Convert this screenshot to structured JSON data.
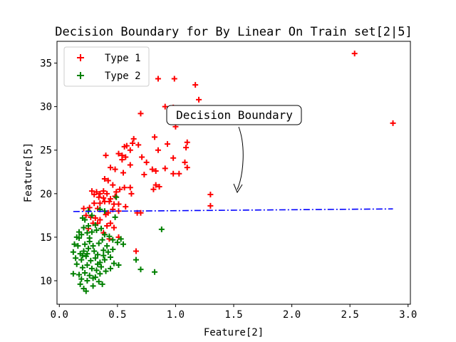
{
  "chart_data": {
    "type": "scatter",
    "title": "Decision Boundary for By Linear On Train set[2|5]",
    "xlabel": "Feature[2]",
    "ylabel": "Feature[5]",
    "xlim": [
      -0.02,
      3.02
    ],
    "ylim": [
      7.3,
      37.5
    ],
    "xticks": [
      0.0,
      0.5,
      1.0,
      1.5,
      2.0,
      2.5,
      3.0
    ],
    "xtick_labels": [
      "0.0",
      "0.5",
      "1.0",
      "1.5",
      "2.0",
      "2.5",
      "3.0"
    ],
    "yticks": [
      10,
      15,
      20,
      25,
      30,
      35
    ],
    "ytick_labels": [
      "10",
      "15",
      "20",
      "25",
      "30",
      "35"
    ],
    "grid": false,
    "legend_position": "top-left",
    "series": [
      {
        "name": "Type 1",
        "color": "#ff0000",
        "marker": "plus",
        "points": [
          [
            2.54,
            36.1
          ],
          [
            2.87,
            28.1
          ],
          [
            0.85,
            33.2
          ],
          [
            0.99,
            33.2
          ],
          [
            1.17,
            32.5
          ],
          [
            1.2,
            30.8
          ],
          [
            0.91,
            30.0
          ],
          [
            0.98,
            29.9
          ],
          [
            0.7,
            29.2
          ],
          [
            1.0,
            27.7
          ],
          [
            0.82,
            26.5
          ],
          [
            0.64,
            26.3
          ],
          [
            0.63,
            25.8
          ],
          [
            0.58,
            25.5
          ],
          [
            0.56,
            25.4
          ],
          [
            0.68,
            25.6
          ],
          [
            0.93,
            25.7
          ],
          [
            1.1,
            25.9
          ],
          [
            1.09,
            25.3
          ],
          [
            0.61,
            25.0
          ],
          [
            0.51,
            24.6
          ],
          [
            0.54,
            24.4
          ],
          [
            0.57,
            24.2
          ],
          [
            0.71,
            24.2
          ],
          [
            0.85,
            25.0
          ],
          [
            0.4,
            24.4
          ],
          [
            0.54,
            23.9
          ],
          [
            0.98,
            24.1
          ],
          [
            0.75,
            23.6
          ],
          [
            1.08,
            23.6
          ],
          [
            0.61,
            23.3
          ],
          [
            0.8,
            22.8
          ],
          [
            0.91,
            22.9
          ],
          [
            1.1,
            23.0
          ],
          [
            0.44,
            23.0
          ],
          [
            0.48,
            22.8
          ],
          [
            0.55,
            22.4
          ],
          [
            0.73,
            22.2
          ],
          [
            0.83,
            22.6
          ],
          [
            0.98,
            22.3
          ],
          [
            1.03,
            22.3
          ],
          [
            0.39,
            21.7
          ],
          [
            0.42,
            21.5
          ],
          [
            0.46,
            21.0
          ],
          [
            0.56,
            20.7
          ],
          [
            0.61,
            20.7
          ],
          [
            0.83,
            21.0
          ],
          [
            0.81,
            20.5
          ],
          [
            0.86,
            20.8
          ],
          [
            0.32,
            20.2
          ],
          [
            0.35,
            20.0
          ],
          [
            0.38,
            20.3
          ],
          [
            0.41,
            20.0
          ],
          [
            0.49,
            20.2
          ],
          [
            0.52,
            20.5
          ],
          [
            0.62,
            20.0
          ],
          [
            0.28,
            20.3
          ],
          [
            0.3,
            19.9
          ],
          [
            0.34,
            19.6
          ],
          [
            0.38,
            19.5
          ],
          [
            0.44,
            19.4
          ],
          [
            0.48,
            19.7
          ],
          [
            1.3,
            19.9
          ],
          [
            0.3,
            18.9
          ],
          [
            0.35,
            18.9
          ],
          [
            0.39,
            19.1
          ],
          [
            0.43,
            19.1
          ],
          [
            0.47,
            18.8
          ],
          [
            0.51,
            18.8
          ],
          [
            0.57,
            18.5
          ],
          [
            0.26,
            18.4
          ],
          [
            0.33,
            18.3
          ],
          [
            0.46,
            18.2
          ],
          [
            0.51,
            18.0
          ],
          [
            0.42,
            17.8
          ],
          [
            0.67,
            17.8
          ],
          [
            0.7,
            17.8
          ],
          [
            1.3,
            18.6
          ],
          [
            0.21,
            18.3
          ],
          [
            0.23,
            17.5
          ],
          [
            0.27,
            17.3
          ],
          [
            0.31,
            17.2
          ],
          [
            0.35,
            17.0
          ],
          [
            0.4,
            17.6
          ],
          [
            0.44,
            16.6
          ],
          [
            0.47,
            16.1
          ],
          [
            0.29,
            16.6
          ],
          [
            0.33,
            16.6
          ],
          [
            0.41,
            16.3
          ],
          [
            0.51,
            15.0
          ],
          [
            0.43,
            14.8
          ],
          [
            0.66,
            13.4
          ],
          [
            0.25,
            16.0
          ],
          [
            0.38,
            15.5
          ]
        ]
      },
      {
        "name": "Type 2",
        "color": "#008000",
        "marker": "plus",
        "points": [
          [
            0.88,
            15.9
          ],
          [
            0.7,
            11.3
          ],
          [
            0.82,
            11.0
          ],
          [
            0.66,
            12.4
          ],
          [
            0.53,
            14.8
          ],
          [
            0.49,
            19.6
          ],
          [
            0.25,
            18.0
          ],
          [
            0.39,
            18.0
          ],
          [
            0.48,
            17.3
          ],
          [
            0.2,
            17.2
          ],
          [
            0.15,
            15.0
          ],
          [
            0.17,
            14.9
          ],
          [
            0.19,
            15.3
          ],
          [
            0.24,
            15.5
          ],
          [
            0.28,
            15.6
          ],
          [
            0.32,
            15.8
          ],
          [
            0.21,
            16.1
          ],
          [
            0.25,
            16.3
          ],
          [
            0.31,
            16.4
          ],
          [
            0.36,
            16.0
          ],
          [
            0.39,
            15.3
          ],
          [
            0.43,
            15.1
          ],
          [
            0.46,
            14.7
          ],
          [
            0.5,
            14.4
          ],
          [
            0.55,
            14.2
          ],
          [
            0.13,
            14.2
          ],
          [
            0.16,
            14.0
          ],
          [
            0.22,
            14.2
          ],
          [
            0.26,
            14.5
          ],
          [
            0.29,
            14.0
          ],
          [
            0.34,
            14.3
          ],
          [
            0.37,
            14.7
          ],
          [
            0.41,
            14.0
          ],
          [
            0.12,
            13.3
          ],
          [
            0.18,
            13.1
          ],
          [
            0.21,
            13.4
          ],
          [
            0.25,
            13.7
          ],
          [
            0.3,
            13.4
          ],
          [
            0.33,
            13.0
          ],
          [
            0.38,
            13.5
          ],
          [
            0.42,
            13.3
          ],
          [
            0.46,
            13.6
          ],
          [
            0.14,
            12.6
          ],
          [
            0.19,
            12.4
          ],
          [
            0.23,
            12.8
          ],
          [
            0.27,
            12.3
          ],
          [
            0.31,
            12.6
          ],
          [
            0.35,
            12.1
          ],
          [
            0.39,
            12.4
          ],
          [
            0.44,
            12.7
          ],
          [
            0.47,
            12.0
          ],
          [
            0.51,
            11.8
          ],
          [
            0.15,
            11.9
          ],
          [
            0.2,
            11.5
          ],
          [
            0.24,
            11.8
          ],
          [
            0.28,
            11.4
          ],
          [
            0.32,
            11.2
          ],
          [
            0.36,
            11.6
          ],
          [
            0.4,
            11.1
          ],
          [
            0.44,
            11.4
          ],
          [
            0.12,
            10.8
          ],
          [
            0.17,
            10.7
          ],
          [
            0.22,
            10.9
          ],
          [
            0.26,
            10.6
          ],
          [
            0.31,
            10.4
          ],
          [
            0.35,
            10.8
          ],
          [
            0.19,
            10.2
          ],
          [
            0.24,
            10.0
          ],
          [
            0.29,
            10.3
          ],
          [
            0.34,
            9.9
          ],
          [
            0.18,
            9.6
          ],
          [
            0.21,
            9.1
          ],
          [
            0.23,
            8.8
          ],
          [
            0.37,
            9.6
          ],
          [
            0.35,
            18.2
          ],
          [
            0.22,
            17.0
          ],
          [
            0.26,
            14.9
          ],
          [
            0.17,
            15.6
          ],
          [
            0.2,
            12.9
          ],
          [
            0.38,
            12.9
          ],
          [
            0.28,
            17.5
          ],
          [
            0.24,
            13.1
          ],
          [
            0.33,
            11.9
          ],
          [
            0.29,
            9.4
          ]
        ]
      }
    ],
    "boundary": {
      "style": "dash-dot",
      "color": "#0000ff",
      "x": [
        0.12,
        2.87
      ],
      "y": [
        17.95,
        18.25
      ]
    },
    "annotation": {
      "text": "Decision Boundary",
      "text_at": [
        1.3,
        29.0
      ],
      "arrow_to": [
        1.5,
        19.9
      ]
    }
  }
}
